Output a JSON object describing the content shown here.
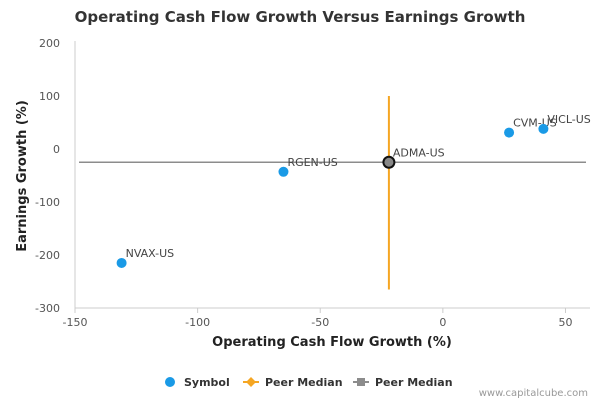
{
  "chart_data": {
    "type": "scatter",
    "title": "Operating Cash Flow Growth Versus Earnings Growth",
    "xlabel": "Operating Cash Flow Growth (%)",
    "ylabel": "Earnings Growth (%)",
    "xlim": [
      -150,
      60
    ],
    "ylim": [
      -300,
      200
    ],
    "x_ticks": [
      -150,
      -100,
      -50,
      0,
      50
    ],
    "y_ticks": [
      200,
      100,
      0,
      -100,
      -200,
      -300
    ],
    "grid": false,
    "points": [
      {
        "label": "NVAX-US",
        "x": -131,
        "y": -215
      },
      {
        "label": "RGEN-US",
        "x": -65,
        "y": -43
      },
      {
        "label": "ADMA-US",
        "x": -22,
        "y": -25,
        "highlighted": true
      },
      {
        "label": "CVM-US",
        "x": 27,
        "y": 31
      },
      {
        "label": "VICL-US",
        "x": 41,
        "y": 38
      }
    ],
    "peer_median_x": {
      "x": -22,
      "y_from": -265,
      "y_to": 100
    },
    "peer_median_y": {
      "y": -25
    },
    "legend": [
      {
        "label": "Symbol",
        "marker": "circle",
        "color": "#1a9ae6"
      },
      {
        "label": "Peer Median",
        "marker": "diamond",
        "color": "#f5a623"
      },
      {
        "label": "Peer Median",
        "marker": "square",
        "color": "#8c8c8c"
      }
    ],
    "legend_position": "bottom-center",
    "colors": {
      "point": "#1a9ae6",
      "median_vertical": "#f5a623",
      "median_horizontal": "#8c8c8c",
      "axis": "#cccccc"
    },
    "credit": "www.capitalcube.com"
  }
}
